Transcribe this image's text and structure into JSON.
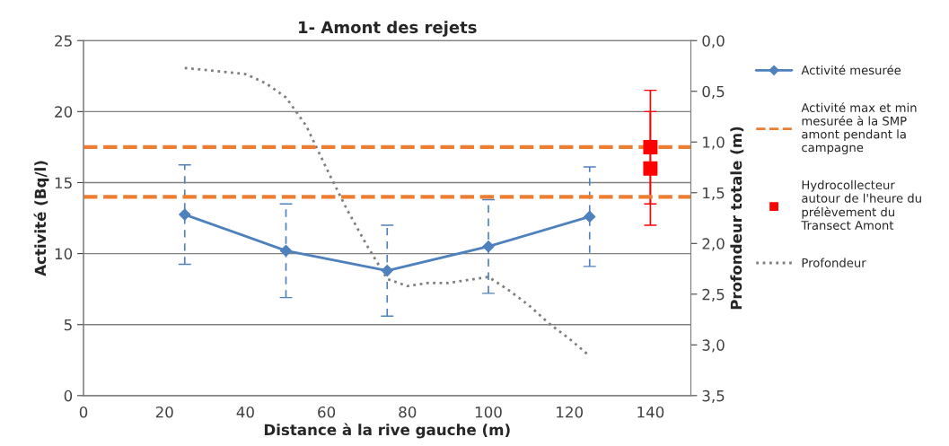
{
  "chart_data": {
    "type": "line",
    "title": "1- Amont des rejets",
    "xlabel": "Distance à la rive gauche (m)",
    "ylabel": "Activité (Bq/l)",
    "y2label": "Profondeur totale (m)",
    "xlim": [
      0,
      150
    ],
    "xticks": [
      0,
      20,
      40,
      60,
      80,
      100,
      120,
      140
    ],
    "ylim": [
      0,
      25
    ],
    "yticks": [
      0,
      5,
      10,
      15,
      20,
      25
    ],
    "y2lim": [
      3.5,
      0
    ],
    "y2ticks": [
      {
        "value": 0,
        "label": "0,0"
      },
      {
        "value": 0.5,
        "label": "0,5"
      },
      {
        "value": 1,
        "label": "1,0"
      },
      {
        "value": 1.5,
        "label": "1,5"
      },
      {
        "value": 2,
        "label": "2,0"
      },
      {
        "value": 2.5,
        "label": "2,5"
      },
      {
        "value": 3,
        "label": "3,0"
      },
      {
        "value": 3.5,
        "label": "3,5"
      }
    ],
    "grid": "y",
    "legend": "right",
    "series": [
      {
        "name": "Activité mesurée",
        "color": "#4f81bd",
        "marker": "diamond",
        "line_style": "solid",
        "x": [
          25,
          50,
          75,
          100,
          125
        ],
        "values": [
          12.75,
          10.2,
          8.8,
          10.5,
          12.6
        ],
        "errors": [
          3.5,
          3.3,
          3.2,
          3.3,
          3.5
        ]
      },
      {
        "name": "Hydrocollecteur\nautour de l'heure du\nprélèvement du\nTransect Amont",
        "type": "scatter",
        "color": "#ff0000",
        "marker": "square",
        "x": [
          140,
          140
        ],
        "values": [
          17.5,
          16.0
        ],
        "errors": [
          4,
          4
        ]
      },
      {
        "name": "Profondeur",
        "axis": "y2",
        "color": "#7f7f7f",
        "marker": "none",
        "line_style": "dotted",
        "x": [
          25,
          40,
          45,
          50,
          55,
          60,
          65,
          70,
          75,
          80,
          85,
          90,
          100,
          105,
          110,
          115,
          120,
          125
        ],
        "values": [
          0.27,
          0.33,
          0.42,
          0.56,
          0.84,
          1.26,
          1.66,
          2.02,
          2.35,
          2.42,
          2.39,
          2.39,
          2.33,
          2.46,
          2.61,
          2.79,
          2.94,
          3.11
        ]
      }
    ],
    "ref_lines": [
      {
        "axis": "y",
        "value": 17.5,
        "label": "Activité max et min\nmesurée à la SMP\namont pendant la\ncampagne",
        "color": "#ed7d31",
        "line_style": "dashed"
      },
      {
        "axis": "y",
        "value": 14.0,
        "label": null,
        "color": "#ed7d31",
        "line_style": "dashed"
      }
    ]
  }
}
